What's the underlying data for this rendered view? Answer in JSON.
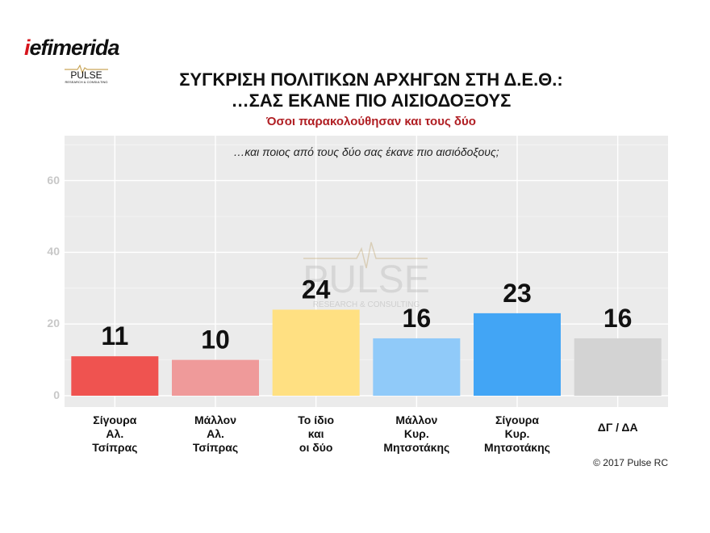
{
  "logo": {
    "brand_i": "i",
    "brand_rest": "efimerida",
    "pulse": "PULSE",
    "pulse_sub": "RESEARCH & CONSULTING"
  },
  "title_line1": "ΣΥΓΚΡΙΣΗ ΠΟΛΙΤΙΚΩΝ ΑΡΧΗΓΩΝ ΣΤΗ Δ.Ε.Θ.:",
  "title_line2": "…ΣΑΣ ΕΚΑΝΕ ΠΙΟ ΑΙΣΙΟΔΟΞΟΥΣ",
  "subtitle": "Όσοι παρακολούθησαν και τους δύο",
  "question": "…και ποιος από τους δύο σας έκανε πιο αισιόδοξους;",
  "watermark": {
    "main": "PULSE",
    "sub": "RESEARCH & CONSULTING"
  },
  "credit": "© 2017 Pulse RC",
  "chart_data": {
    "type": "bar",
    "categories": [
      "Σίγουρα\nΑλ.\nΤσίπρας",
      "Μάλλον\nΑλ.\nΤσίπρας",
      "Το ίδιο\nκαι\nοι δύο",
      "Μάλλον\nΚυρ.\nΜητσοτάκης",
      "Σίγουρα\nΚυρ.\nΜητσοτάκης",
      "ΔΓ / ΔΑ"
    ],
    "values": [
      11,
      10,
      24,
      16,
      23,
      16
    ],
    "data_labels": [
      "11",
      "10",
      "24",
      "16",
      "23",
      "16"
    ],
    "colors": [
      "#ef5350",
      "#ef9a9a",
      "#ffe082",
      "#90caf9",
      "#42a5f5",
      "#d3d3d3"
    ],
    "yticks": [
      "0",
      "20",
      "40",
      "60"
    ],
    "ylim": [
      -2.5,
      73
    ],
    "grid": true,
    "legend": "none"
  }
}
